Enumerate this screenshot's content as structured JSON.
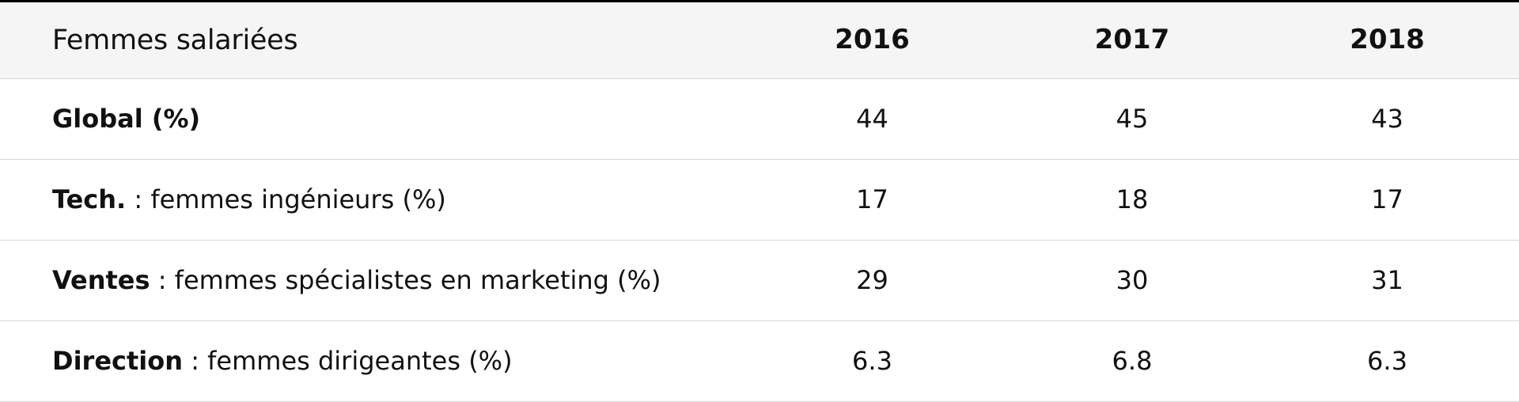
{
  "table": {
    "header": {
      "label": "Femmes salariées",
      "years": [
        "2016",
        "2017",
        "2018"
      ]
    },
    "rows": [
      {
        "bold": "Global (%)",
        "rest": "",
        "values": [
          "44",
          "45",
          "43"
        ]
      },
      {
        "bold": "Tech.",
        "rest": " : femmes ingénieurs (%)",
        "values": [
          "17",
          "18",
          "17"
        ]
      },
      {
        "bold": "Ventes",
        "rest": " : femmes spécialistes en marketing (%)",
        "values": [
          "29",
          "30",
          "31"
        ]
      },
      {
        "bold": "Direction",
        "rest": " : femmes dirigeantes (%)",
        "values": [
          "6.3",
          "6.8",
          "6.3"
        ]
      }
    ]
  }
}
